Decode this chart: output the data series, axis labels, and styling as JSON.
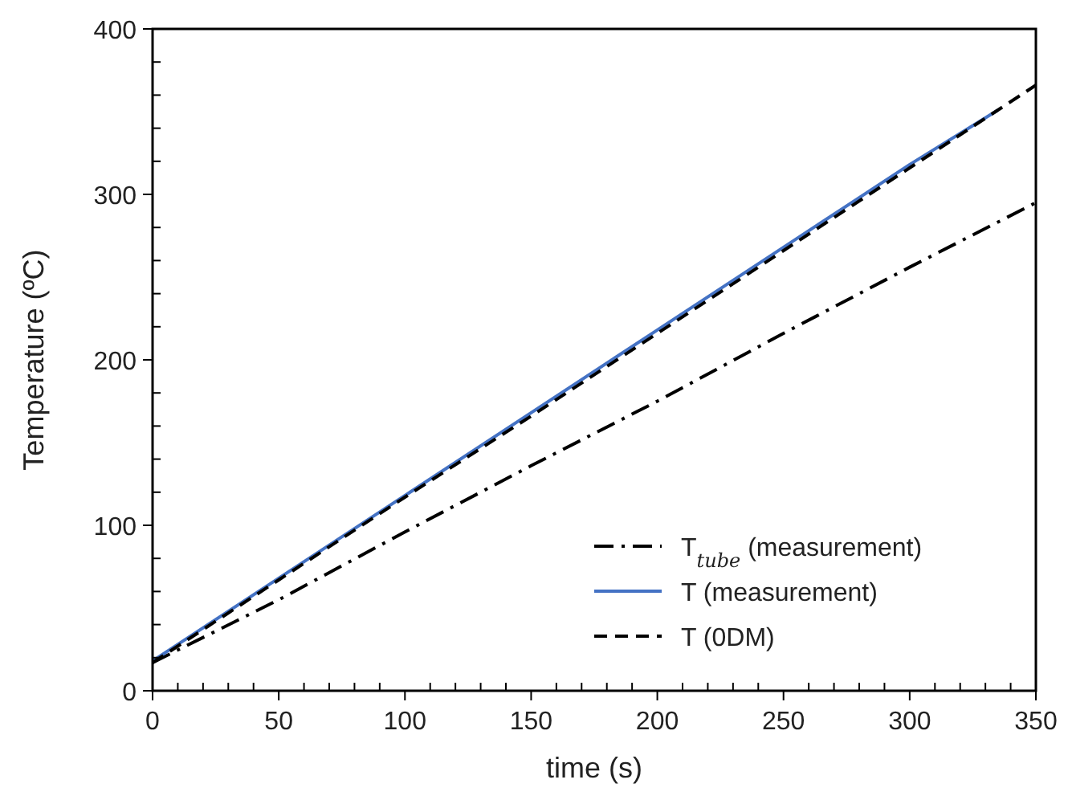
{
  "chart_data": {
    "type": "line",
    "xlabel": "time (s)",
    "ylabel": "Temperature (ºC)",
    "xlim": [
      0,
      350
    ],
    "ylim": [
      0,
      400
    ],
    "xticks": [
      0,
      {
        "value": 10,
        "label": null
      },
      {
        "value": 20,
        "label": null
      },
      {
        "value": 30,
        "label": null
      },
      {
        "value": 40,
        "label": null
      },
      50,
      {
        "value": 60,
        "label": null
      },
      {
        "value": 70,
        "label": null
      },
      {
        "value": 80,
        "label": null
      },
      {
        "value": 90,
        "label": null
      },
      100,
      {
        "value": 110,
        "label": null
      },
      {
        "value": 120,
        "label": null
      },
      {
        "value": 130,
        "label": null
      },
      {
        "value": 140,
        "label": null
      },
      150,
      {
        "value": 160,
        "label": null
      },
      {
        "value": 170,
        "label": null
      },
      {
        "value": 180,
        "label": null
      },
      {
        "value": 190,
        "label": null
      },
      200,
      {
        "value": 210,
        "label": null
      },
      {
        "value": 220,
        "label": null
      },
      {
        "value": 230,
        "label": null
      },
      {
        "value": 240,
        "label": null
      },
      250,
      {
        "value": 260,
        "label": null
      },
      {
        "value": 270,
        "label": null
      },
      {
        "value": 280,
        "label": null
      },
      {
        "value": 290,
        "label": null
      },
      300,
      {
        "value": 310,
        "label": null
      },
      {
        "value": 320,
        "label": null
      },
      {
        "value": 330,
        "label": null
      },
      {
        "value": 340,
        "label": null
      },
      350
    ],
    "yticks": [
      0,
      {
        "value": 20,
        "label": null
      },
      {
        "value": 40,
        "label": null
      },
      {
        "value": 60,
        "label": null
      },
      {
        "value": 80,
        "label": null
      },
      100,
      {
        "value": 120,
        "label": null
      },
      {
        "value": 140,
        "label": null
      },
      {
        "value": 160,
        "label": null
      },
      {
        "value": 180,
        "label": null
      },
      200,
      {
        "value": 220,
        "label": null
      },
      {
        "value": 240,
        "label": null
      },
      {
        "value": 260,
        "label": null
      },
      {
        "value": 280,
        "label": null
      },
      300,
      {
        "value": 320,
        "label": null
      },
      {
        "value": 340,
        "label": null
      },
      {
        "value": 360,
        "label": null
      },
      {
        "value": 380,
        "label": null
      },
      400
    ],
    "legend": "bottom right",
    "grid": false,
    "series": [
      {
        "name": "T$_{tube}$ (measurement)",
        "color": "#000000",
        "line_style": "dashdot",
        "x": [
          0,
          50,
          100,
          150,
          200,
          250,
          300,
          350
        ],
        "values": [
          17,
          55,
          96,
          136,
          175,
          216,
          256,
          295
        ]
      },
      {
        "name": "T (measurement)",
        "color": "#4472c4",
        "line_style": "solid",
        "x": [
          0,
          50,
          100,
          150,
          200,
          250,
          300,
          335
        ],
        "values": [
          18,
          68,
          118,
          168,
          218,
          268,
          318,
          351
        ]
      },
      {
        "name": "T (0DM)",
        "color": "#000000",
        "line_style": "dashed",
        "x": [
          0,
          50,
          100,
          150,
          200,
          250,
          300,
          350
        ],
        "values": [
          17,
          67,
          117,
          166,
          216,
          266,
          316,
          366
        ]
      }
    ]
  }
}
